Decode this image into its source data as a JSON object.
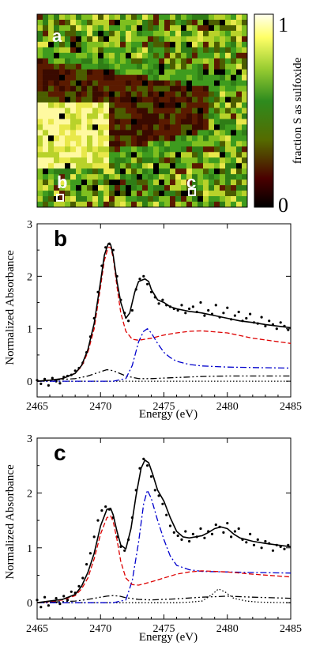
{
  "map_panel": {
    "label": "a",
    "point_labels": [
      "b",
      "c"
    ],
    "colorbar": {
      "title": "fraction S as sulfoxide",
      "max_label": "1",
      "min_label": "0",
      "colors": [
        "#000000",
        "#4a0000",
        "#556b00",
        "#2e8b1e",
        "#9acd32",
        "#ffff66",
        "#fffff0"
      ]
    }
  },
  "chart_data": [
    {
      "type": "line",
      "panel_label": "b",
      "xlabel": "Energy (eV)",
      "ylabel": "Normalized Absorbance",
      "xlim": [
        2465,
        2485
      ],
      "ylim": [
        -0.3,
        3
      ],
      "xticks": [
        2465,
        2470,
        2475,
        2480,
        2485
      ],
      "yticks": [
        0,
        1,
        2,
        3
      ],
      "series": [
        {
          "style": "solid",
          "color": "#000000",
          "x": [
            2465,
            2466,
            2467,
            2468,
            2468.5,
            2469,
            2469.5,
            2470,
            2470.3,
            2470.6,
            2470.8,
            2471,
            2471.3,
            2471.6,
            2472,
            2472.3,
            2472.7,
            2473,
            2473.5,
            2473.8,
            2474,
            2474.5,
            2475,
            2475.5,
            2476,
            2477,
            2478,
            2479,
            2480,
            2481,
            2482,
            2483,
            2484,
            2485
          ],
          "y": [
            0,
            0.02,
            0.05,
            0.15,
            0.3,
            0.6,
            1.1,
            1.9,
            2.4,
            2.62,
            2.6,
            2.4,
            1.9,
            1.5,
            1.2,
            1.3,
            1.7,
            1.9,
            1.95,
            1.9,
            1.75,
            1.55,
            1.5,
            1.42,
            1.38,
            1.33,
            1.3,
            1.25,
            1.2,
            1.15,
            1.12,
            1.08,
            1.05,
            1.02
          ]
        },
        {
          "style": "dashed",
          "color": "#dd0000",
          "x": [
            2465,
            2466,
            2467,
            2468,
            2468.5,
            2469,
            2469.5,
            2470,
            2470.3,
            2470.6,
            2470.8,
            2471,
            2471.3,
            2471.6,
            2472,
            2472.5,
            2473,
            2474,
            2475,
            2476,
            2477,
            2478,
            2480,
            2482,
            2485
          ],
          "y": [
            0,
            0.02,
            0.05,
            0.15,
            0.28,
            0.55,
            1.0,
            1.8,
            2.3,
            2.55,
            2.55,
            2.35,
            1.8,
            1.3,
            0.95,
            0.8,
            0.78,
            0.82,
            0.88,
            0.92,
            0.95,
            0.96,
            0.92,
            0.82,
            0.72
          ]
        },
        {
          "style": "dashdot",
          "color": "#0000cc",
          "x": [
            2465,
            2470,
            2471,
            2472,
            2472.5,
            2473,
            2473.4,
            2473.7,
            2474,
            2474.5,
            2475,
            2475.5,
            2476,
            2477,
            2478,
            2480,
            2482,
            2485
          ],
          "y": [
            0,
            0,
            0,
            0.05,
            0.3,
            0.75,
            0.95,
            1.0,
            0.92,
            0.72,
            0.55,
            0.45,
            0.38,
            0.32,
            0.29,
            0.27,
            0.26,
            0.25
          ]
        },
        {
          "style": "dashdotdot",
          "color": "#000000",
          "x": [
            2465,
            2468,
            2469,
            2470,
            2470.5,
            2471,
            2471.5,
            2472,
            2473,
            2474,
            2476,
            2478,
            2480,
            2482,
            2485
          ],
          "y": [
            0,
            0.05,
            0.1,
            0.18,
            0.22,
            0.2,
            0.15,
            0.1,
            0.05,
            0.05,
            0.07,
            0.09,
            0.1,
            0.1,
            0.1
          ]
        },
        {
          "style": "dotted",
          "color": "#000000",
          "x": [
            2465,
            2485
          ],
          "y": [
            0,
            0
          ]
        }
      ],
      "scatter": {
        "x": [
          2465,
          2465.3,
          2465.6,
          2465.9,
          2466.2,
          2466.5,
          2466.8,
          2467.1,
          2467.4,
          2467.7,
          2468,
          2468.3,
          2468.6,
          2468.9,
          2469.2,
          2469.5,
          2469.8,
          2470.1,
          2470.4,
          2470.7,
          2471,
          2471.3,
          2471.6,
          2471.9,
          2472.2,
          2472.5,
          2472.8,
          2473.1,
          2473.4,
          2473.7,
          2474,
          2474.3,
          2474.6,
          2474.9,
          2475.2,
          2475.5,
          2475.8,
          2476.1,
          2476.4,
          2476.7,
          2477,
          2477.3,
          2477.6,
          2477.9,
          2478.2,
          2478.5,
          2478.8,
          2479.1,
          2479.4,
          2479.7,
          2480,
          2480.3,
          2480.6,
          2480.9,
          2481.2,
          2481.5,
          2481.8,
          2482.1,
          2482.4,
          2482.7,
          2483,
          2483.3,
          2483.6,
          2483.9,
          2484.2,
          2484.5,
          2484.8
        ],
        "y": [
          0.02,
          -0.05,
          0.04,
          -0.08,
          0.06,
          0.0,
          -0.04,
          0.08,
          0.1,
          0.12,
          0.2,
          0.25,
          0.35,
          0.55,
          0.85,
          1.2,
          1.7,
          2.2,
          2.55,
          2.62,
          2.5,
          2.0,
          1.55,
          1.3,
          1.15,
          1.35,
          1.75,
          1.95,
          2.0,
          1.85,
          1.7,
          1.6,
          1.48,
          1.55,
          1.45,
          1.42,
          1.38,
          1.35,
          1.45,
          1.3,
          1.38,
          1.42,
          1.32,
          1.5,
          1.25,
          1.35,
          1.28,
          1.45,
          1.22,
          1.3,
          1.4,
          1.18,
          1.25,
          1.32,
          1.15,
          1.2,
          1.28,
          1.12,
          1.1,
          1.22,
          1.05,
          1.15,
          1.08,
          1.0,
          1.12,
          1.05,
          0.98
        ]
      }
    },
    {
      "type": "line",
      "panel_label": "c",
      "xlabel": "Energy (eV)",
      "ylabel": "Normalized Absorbance",
      "xlim": [
        2465,
        2485
      ],
      "ylim": [
        -0.3,
        3
      ],
      "xticks": [
        2465,
        2470,
        2475,
        2480,
        2485
      ],
      "yticks": [
        0,
        1,
        2,
        3
      ],
      "series": [
        {
          "style": "solid",
          "color": "#000000",
          "x": [
            2465,
            2466,
            2467,
            2468,
            2468.5,
            2469,
            2469.5,
            2470,
            2470.5,
            2470.8,
            2471,
            2471.3,
            2471.6,
            2472,
            2472.4,
            2472.8,
            2473.2,
            2473.5,
            2473.8,
            2474.1,
            2474.5,
            2475,
            2475.5,
            2476,
            2476.5,
            2477,
            2478,
            2478.5,
            2479,
            2479.5,
            2480,
            2480.5,
            2481,
            2482,
            2483,
            2484,
            2485
          ],
          "y": [
            0,
            0.03,
            0.06,
            0.15,
            0.3,
            0.55,
            0.9,
            1.4,
            1.7,
            1.72,
            1.6,
            1.3,
            1.05,
            0.98,
            1.35,
            1.95,
            2.45,
            2.6,
            2.55,
            2.35,
            2.05,
            1.85,
            1.55,
            1.3,
            1.2,
            1.18,
            1.22,
            1.28,
            1.35,
            1.38,
            1.35,
            1.25,
            1.18,
            1.12,
            1.08,
            1.05,
            1.02
          ]
        },
        {
          "style": "dashed",
          "color": "#dd0000",
          "x": [
            2465,
            2466,
            2467,
            2468,
            2468.5,
            2469,
            2469.5,
            2470,
            2470.5,
            2470.8,
            2471,
            2471.3,
            2471.6,
            2472,
            2472.5,
            2473,
            2474,
            2475,
            2476,
            2477,
            2478,
            2480,
            2482,
            2485
          ],
          "y": [
            0,
            0.02,
            0.05,
            0.13,
            0.25,
            0.45,
            0.8,
            1.25,
            1.55,
            1.58,
            1.48,
            1.15,
            0.75,
            0.45,
            0.33,
            0.32,
            0.38,
            0.45,
            0.52,
            0.56,
            0.58,
            0.56,
            0.52,
            0.47
          ]
        },
        {
          "style": "dashdot",
          "color": "#0000cc",
          "x": [
            2465,
            2470,
            2471,
            2472,
            2472.5,
            2473,
            2473.4,
            2473.7,
            2474,
            2474.5,
            2475,
            2475.5,
            2476,
            2477,
            2478,
            2480,
            2482,
            2485
          ],
          "y": [
            0,
            0,
            0,
            0.05,
            0.4,
            1.1,
            1.8,
            2.05,
            1.9,
            1.5,
            1.15,
            0.85,
            0.68,
            0.6,
            0.57,
            0.56,
            0.55,
            0.54
          ]
        },
        {
          "style": "dashdotdot",
          "color": "#000000",
          "x": [
            2465,
            2468,
            2469,
            2470,
            2470.5,
            2471,
            2471.5,
            2472,
            2473,
            2474,
            2476,
            2478,
            2480,
            2482,
            2485
          ],
          "y": [
            0,
            0.03,
            0.06,
            0.1,
            0.12,
            0.13,
            0.12,
            0.09,
            0.06,
            0.05,
            0.07,
            0.1,
            0.12,
            0.1,
            0.08
          ]
        },
        {
          "style": "dotted",
          "color": "#000000",
          "x": [
            2465,
            2476,
            2477,
            2478,
            2478.8,
            2479.3,
            2479.8,
            2480.5,
            2481.5,
            2482.5,
            2485
          ],
          "y": [
            0,
            0,
            0.01,
            0.03,
            0.15,
            0.25,
            0.2,
            0.08,
            0.03,
            0.01,
            0
          ]
        }
      ],
      "scatter": {
        "x": [
          2465,
          2465.3,
          2465.6,
          2465.9,
          2466.2,
          2466.5,
          2466.8,
          2467.1,
          2467.4,
          2467.7,
          2468,
          2468.3,
          2468.6,
          2468.9,
          2469.2,
          2469.5,
          2469.8,
          2470.1,
          2470.4,
          2470.7,
          2471,
          2471.3,
          2471.6,
          2471.9,
          2472.2,
          2472.5,
          2472.8,
          2473.1,
          2473.4,
          2473.7,
          2474,
          2474.3,
          2474.6,
          2474.9,
          2475.2,
          2475.5,
          2475.8,
          2476.1,
          2476.4,
          2476.7,
          2477,
          2477.3,
          2477.6,
          2477.9,
          2478.2,
          2478.5,
          2478.8,
          2479.1,
          2479.4,
          2479.7,
          2480,
          2480.3,
          2480.6,
          2480.9,
          2481.2,
          2481.5,
          2481.8,
          2482.1,
          2482.4,
          2482.7,
          2483,
          2483.3,
          2483.6,
          2483.9,
          2484.2,
          2484.5,
          2484.8
        ],
        "y": [
          0.05,
          -0.08,
          0.1,
          -0.05,
          0.02,
          0.08,
          -0.02,
          0.12,
          0.05,
          0.2,
          0.18,
          0.3,
          0.45,
          0.7,
          0.9,
          1.2,
          1.5,
          1.68,
          1.75,
          1.7,
          1.55,
          1.2,
          1.02,
          0.95,
          1.15,
          1.55,
          2.05,
          2.45,
          2.62,
          2.5,
          2.3,
          2.05,
          1.95,
          1.8,
          1.6,
          1.4,
          1.28,
          1.22,
          1.15,
          1.3,
          1.12,
          1.25,
          1.2,
          1.35,
          1.18,
          1.3,
          1.25,
          1.42,
          1.38,
          1.28,
          1.45,
          1.2,
          1.3,
          1.35,
          1.15,
          1.1,
          1.25,
          1.05,
          1.15,
          1.0,
          1.12,
          1.08,
          0.95,
          1.05,
          1.02,
          0.98,
          1.05
        ]
      }
    }
  ]
}
